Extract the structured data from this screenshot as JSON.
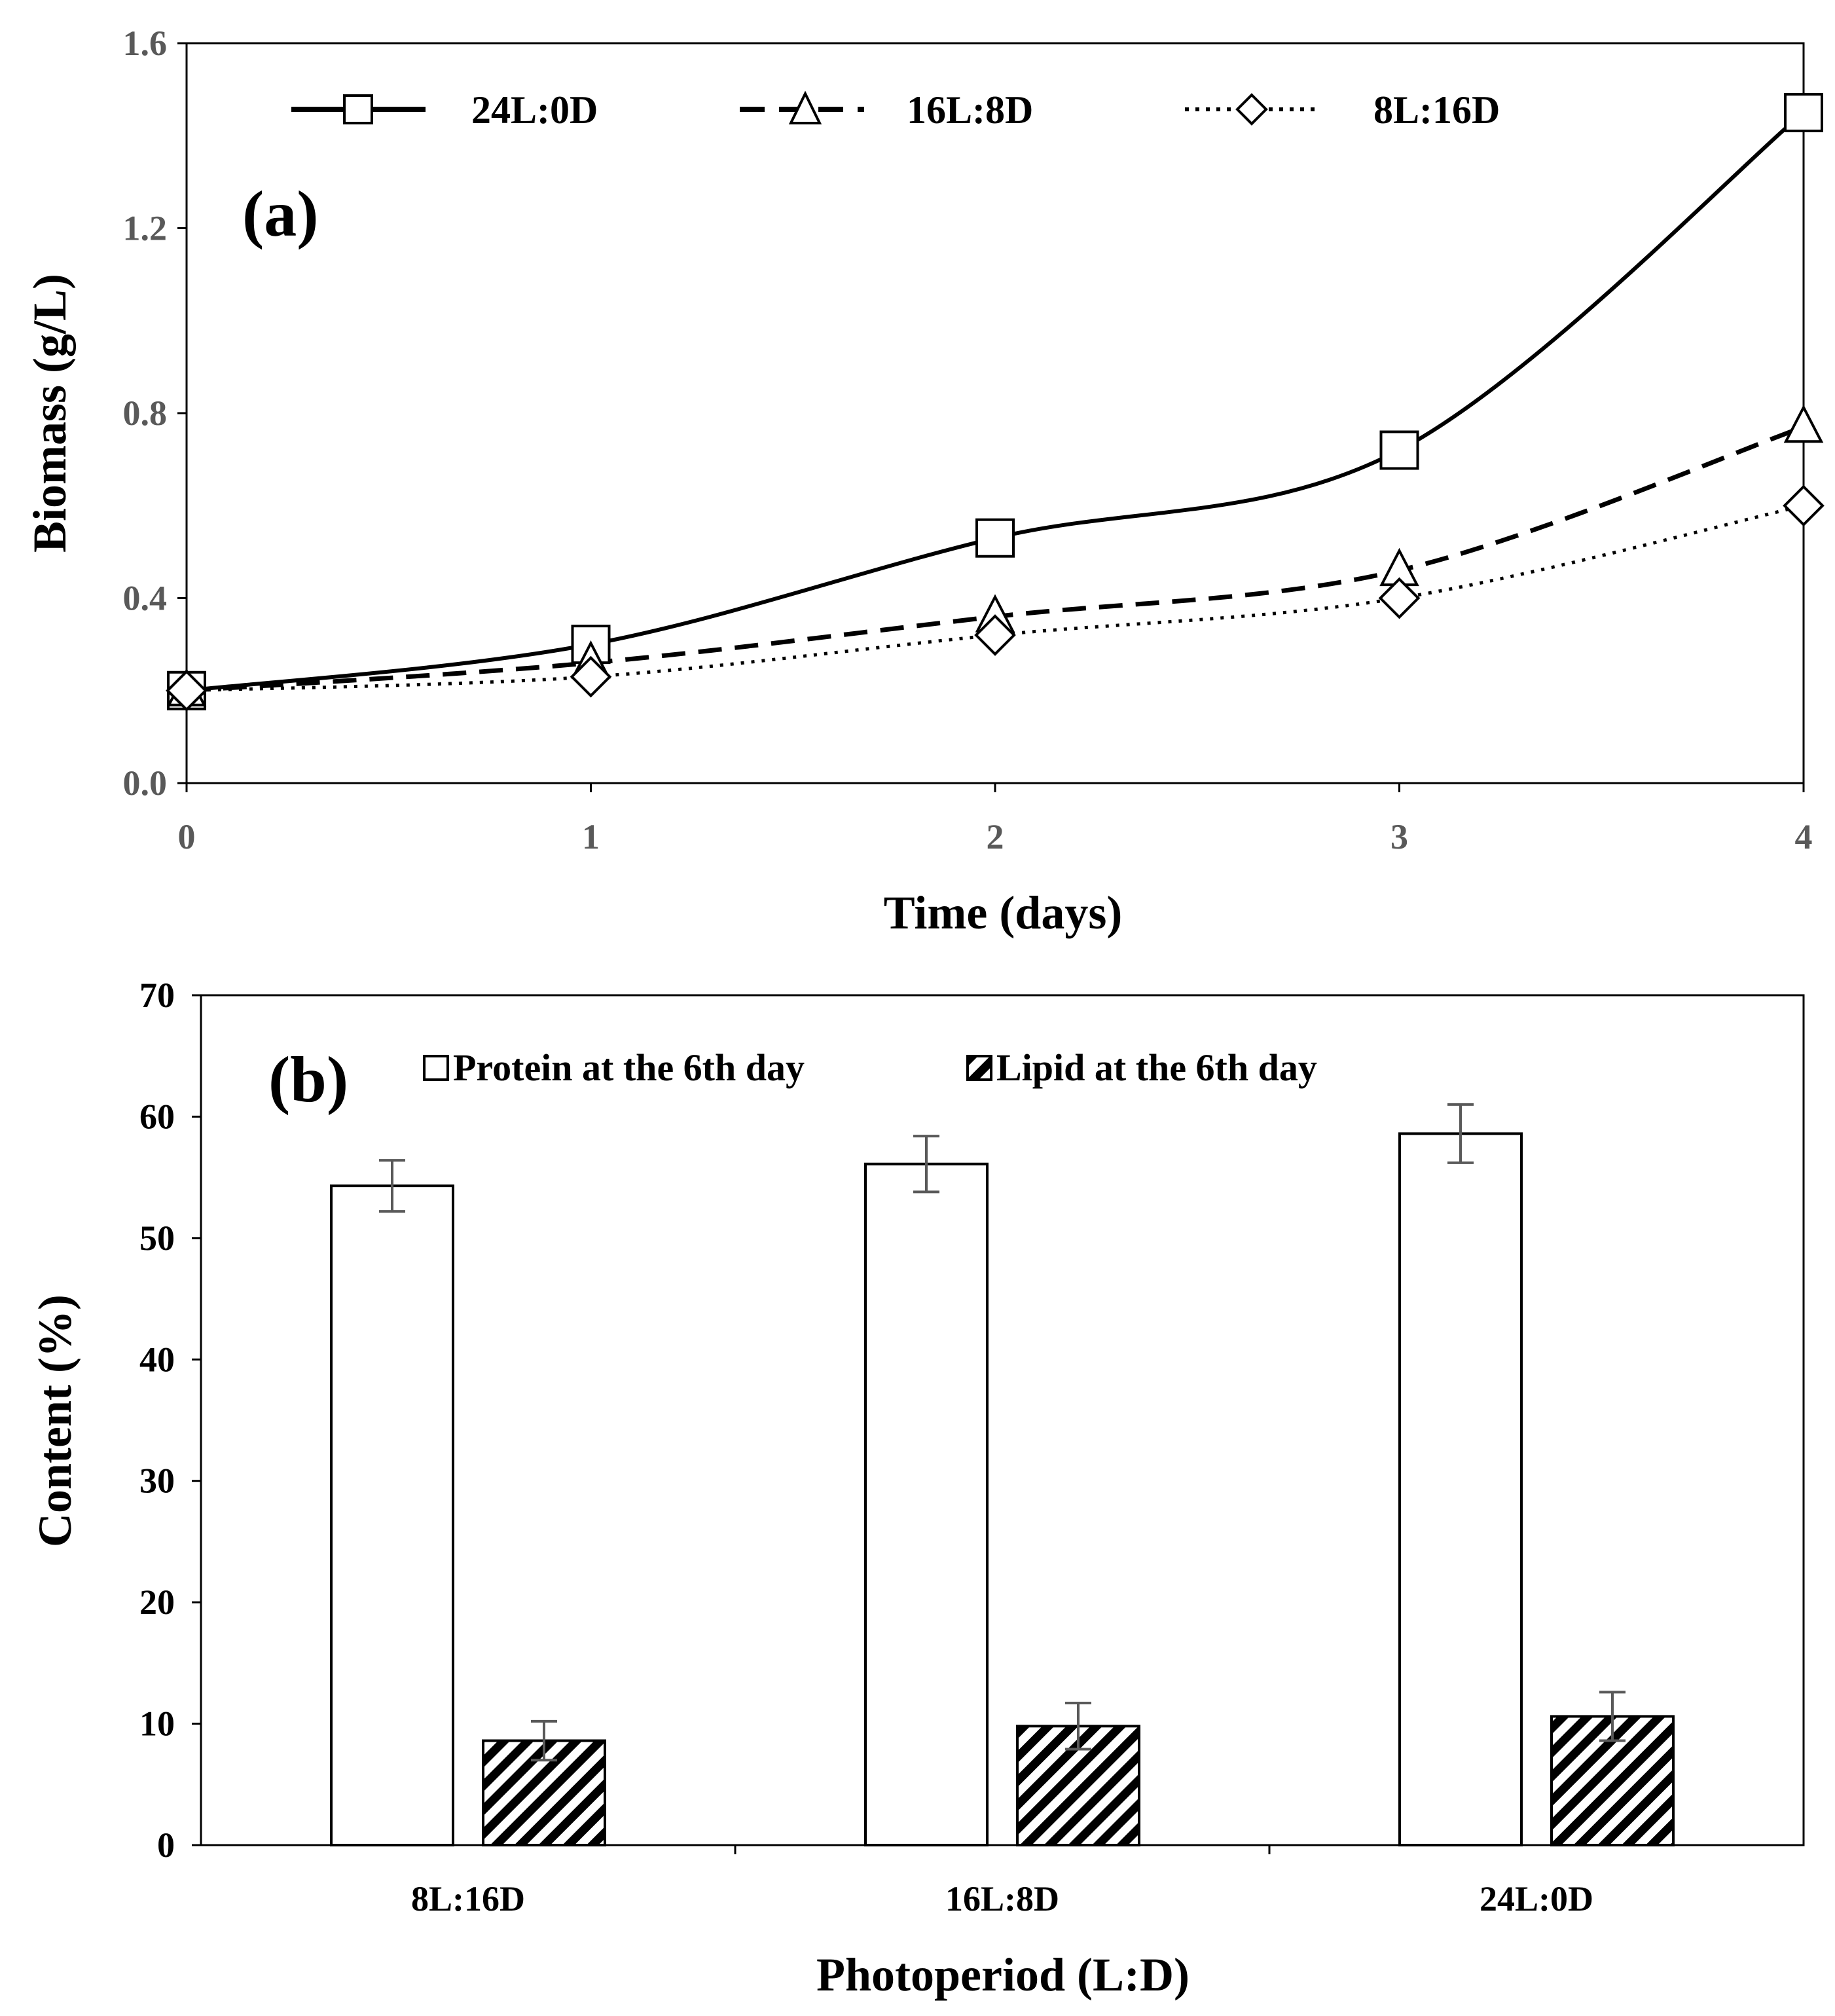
{
  "chart_data": [
    {
      "type": "line",
      "panel_label": "(a)",
      "xlabel": "Time (days)",
      "ylabel": "Biomass (g/L)",
      "x": [
        0,
        1,
        2,
        3,
        4
      ],
      "xticks": [
        "0",
        "1",
        "2",
        "3",
        "4"
      ],
      "yticks": [
        "0.0",
        "0.4",
        "0.8",
        "1.2",
        "1.6"
      ],
      "xlim": [
        0,
        4
      ],
      "ylim": [
        0,
        1.6
      ],
      "legend_position": "top",
      "series": [
        {
          "name": "24L:0D",
          "marker": "square",
          "line": "solid",
          "values": [
            0.2,
            0.3,
            0.53,
            0.72,
            1.45
          ]
        },
        {
          "name": "16L:8D",
          "marker": "triangle",
          "line": "dashed",
          "values": [
            0.2,
            0.26,
            0.36,
            0.46,
            0.77
          ]
        },
        {
          "name": "8L:16D",
          "marker": "diamond",
          "line": "dotted",
          "values": [
            0.2,
            0.23,
            0.32,
            0.4,
            0.6
          ]
        }
      ]
    },
    {
      "type": "bar",
      "panel_label": "(b)",
      "xlabel": "Photoperiod (L:D)",
      "ylabel": "Content (%)",
      "categories": [
        "8L:16D",
        "16L:8D",
        "24L:0D"
      ],
      "yticks": [
        "0",
        "10",
        "20",
        "30",
        "40",
        "50",
        "60",
        "70"
      ],
      "ylim": [
        0,
        70
      ],
      "legend_position": "top",
      "series": [
        {
          "name": "Protein at the 6th day",
          "fill": "white",
          "values": [
            54.3,
            56.1,
            58.6
          ],
          "errors": [
            2.1,
            2.3,
            2.4
          ]
        },
        {
          "name": "Lipid at the 6th day",
          "fill": "hatched",
          "values": [
            8.6,
            9.8,
            10.6
          ],
          "errors": [
            1.6,
            1.9,
            2.0
          ]
        }
      ]
    }
  ]
}
